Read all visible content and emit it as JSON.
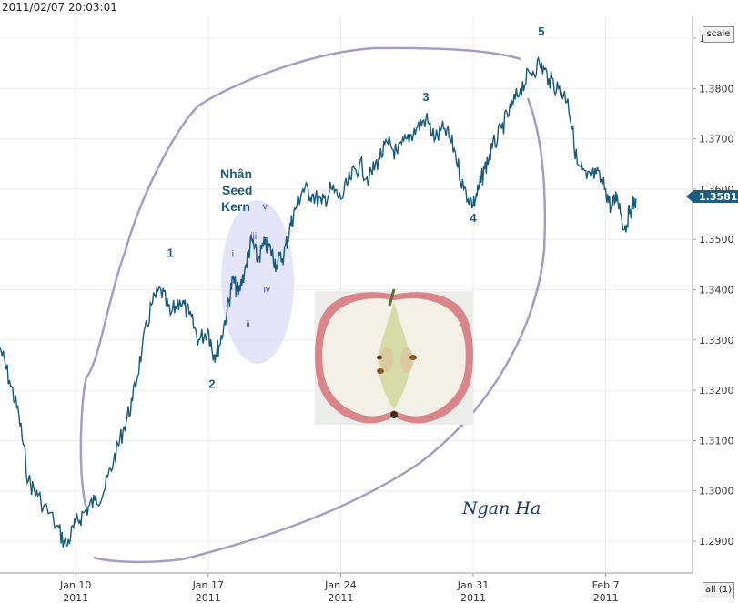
{
  "timestamp": "2011/02/07 20:03:01",
  "controls": {
    "scale_label": "scale",
    "all_label": "all (1)"
  },
  "colors": {
    "price_line": "#1a5a7a",
    "outline": "#a89cc4",
    "seed_ellipse": "#dfe0f8",
    "label_color": "#1f5d80",
    "price_tag_bg": "#1f5d80"
  },
  "chart_data": {
    "type": "line",
    "title": "",
    "xlabel": "",
    "ylabel": "",
    "ylim": [
      1.285,
      1.395
    ],
    "yticks": [
      "1.2900",
      "1.3000",
      "1.3100",
      "1.3200",
      "1.3300",
      "1.3400",
      "1.3500",
      "1.3600",
      "1.3700",
      "1.3800",
      "1.3900"
    ],
    "xticks": [
      {
        "label": "Jan 10",
        "year": "2011"
      },
      {
        "label": "Jan 17",
        "year": "2011"
      },
      {
        "label": "Jan 24",
        "year": "2011"
      },
      {
        "label": "Jan 31",
        "year": "2011"
      },
      {
        "label": "Feb 7",
        "year": "2011"
      }
    ],
    "last_price": "1.3581",
    "series": [
      {
        "points": [
          [
            "Jan 6",
            1.3285
          ],
          [
            "Jan 6.5",
            1.322
          ],
          [
            "Jan 7",
            1.315
          ],
          [
            "Jan 7.5",
            1.302
          ],
          [
            "Jan 8",
            1.299
          ],
          [
            "Jan 9",
            1.293
          ],
          [
            "Jan 9.5",
            1.289
          ],
          [
            "Jan 10",
            1.2935
          ],
          [
            "Jan 10.5",
            1.296
          ],
          [
            "Jan 11",
            1.298
          ],
          [
            "Jan 11.5",
            1.3
          ],
          [
            "Jan 12",
            1.306
          ],
          [
            "Jan 12.5",
            1.312
          ],
          [
            "Jan 13",
            1.318
          ],
          [
            "Jan 13.5",
            1.328
          ],
          [
            "Jan 14",
            1.337
          ],
          [
            "Jan 14.5",
            1.34
          ],
          [
            "Jan 15",
            1.335
          ],
          [
            "Jan 15.5",
            1.338
          ],
          [
            "Jan 16",
            1.335
          ],
          [
            "Jan 16.5",
            1.33
          ],
          [
            "Jan 17",
            1.332
          ],
          [
            "Jan 17.3",
            1.327
          ],
          [
            "Jan 17.6",
            1.329
          ],
          [
            "Jan 18",
            1.336
          ],
          [
            "Jan 18.3",
            1.342
          ],
          [
            "Jan 18.6",
            1.339
          ],
          [
            "Jan 19",
            1.345
          ],
          [
            "Jan 19.3",
            1.35
          ],
          [
            "Jan 19.6",
            1.346
          ],
          [
            "Jan 20",
            1.349
          ],
          [
            "Jan 20.3",
            1.348
          ],
          [
            "Jan 20.6",
            1.345
          ],
          [
            "Jan 21",
            1.347
          ],
          [
            "Jan 21.3",
            1.352
          ],
          [
            "Jan 21.6",
            1.356
          ],
          [
            "Jan 22",
            1.36
          ],
          [
            "Jan 22.5",
            1.359
          ],
          [
            "Jan 23",
            1.357
          ],
          [
            "Jan 23.5",
            1.36
          ],
          [
            "Jan 24",
            1.358
          ],
          [
            "Jan 24.5",
            1.362
          ],
          [
            "Jan 25",
            1.365
          ],
          [
            "Jan 25.5",
            1.362
          ],
          [
            "Jan 26",
            1.366
          ],
          [
            "Jan 26.5",
            1.369
          ],
          [
            "Jan 27",
            1.367
          ],
          [
            "Jan 27.5",
            1.37
          ],
          [
            "Jan 28",
            1.372
          ],
          [
            "Jan 28.5",
            1.374
          ],
          [
            "Jan 29",
            1.37
          ],
          [
            "Jan 29.5",
            1.372
          ],
          [
            "Jan 30",
            1.368
          ],
          [
            "Jan 30.5",
            1.36
          ],
          [
            "Jan 31",
            1.357
          ],
          [
            "Jan 31.3",
            1.36
          ],
          [
            "Jan 31.6",
            1.364
          ],
          [
            "Feb 1",
            1.368
          ],
          [
            "Feb 1.5",
            1.372
          ],
          [
            "Feb 2",
            1.376
          ],
          [
            "Feb 2.5",
            1.38
          ],
          [
            "Feb 3",
            1.383
          ],
          [
            "Feb 3.5",
            1.385
          ],
          [
            "Feb 4",
            1.382
          ],
          [
            "Feb 4.5",
            1.38
          ],
          [
            "Feb 5",
            1.378
          ],
          [
            "Feb 5.5",
            1.365
          ],
          [
            "Feb 6",
            1.362
          ],
          [
            "Feb 6.5",
            1.363
          ],
          [
            "Feb 7",
            1.36
          ],
          [
            "Feb 7.3",
            1.356
          ],
          [
            "Feb 7.6",
            1.359
          ],
          [
            "Feb 8",
            1.352
          ],
          [
            "Feb 8.3",
            1.356
          ],
          [
            "Feb 8.6",
            1.3581
          ]
        ]
      }
    ],
    "annotations": {
      "waves": [
        {
          "label": "1",
          "x": "Jan 15",
          "y": 1.3465
        },
        {
          "label": "2",
          "x": "Jan 17.2",
          "y": 1.3205
        },
        {
          "label": "3",
          "x": "Jan 28.5",
          "y": 1.3775
        },
        {
          "label": "4",
          "x": "Jan 31",
          "y": 1.3535
        },
        {
          "label": "5",
          "x": "Feb 3.6",
          "y": 1.3905
        }
      ],
      "subwaves": [
        {
          "label": "i",
          "x": "Jan 18.3",
          "y": 1.3465
        },
        {
          "label": "ii",
          "x": "Jan 19.1",
          "y": 1.3325
        },
        {
          "label": "iii",
          "x": "Jan 19.4",
          "y": 1.35
        },
        {
          "label": "iv",
          "x": "Jan 20.1",
          "y": 1.3395
        },
        {
          "label": "v",
          "x": "Jan 20",
          "y": 1.356
        }
      ],
      "seed_text": [
        "Nhân",
        "Seed",
        "Kern"
      ],
      "signature": "Ngan Ha"
    }
  }
}
